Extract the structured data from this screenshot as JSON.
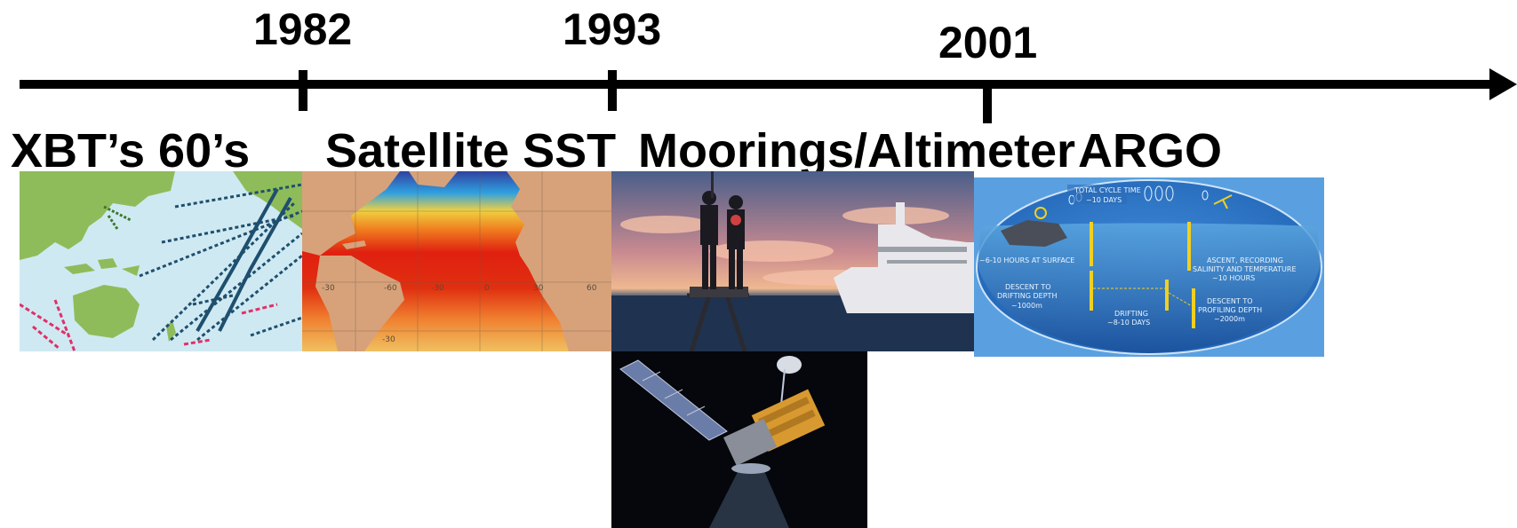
{
  "timeline": {
    "years": [
      "1982",
      "1993",
      "2001"
    ],
    "eras": [
      "XBT’s 60’s",
      "Satellite SST",
      "Moorings/Altimeter",
      "ARGO"
    ]
  },
  "argo_diagram": {
    "total_cycle": "TOTAL CYCLE TIME",
    "total_cycle_value": "~10 DAYS",
    "surface": "~6-10 HOURS AT SURFACE",
    "descent_drift_1": "DESCENT TO",
    "descent_drift_2": "DRIFTING DEPTH",
    "descent_drift_3": "~1000m",
    "drifting_1": "DRIFTING",
    "drifting_2": "~8-10 DAYS",
    "descent_profile_1": "DESCENT TO",
    "descent_profile_2": "PROFILING DEPTH",
    "descent_profile_3": "~2000m",
    "ascent_1": "ASCENT, RECORDING",
    "ascent_2": "SALINITY AND TEMPERATURE",
    "ascent_3": "~10 HOURS"
  },
  "sst_map": {
    "tick_labels": [
      "-30",
      "-60",
      "-30",
      "0",
      "30",
      "60",
      "-30"
    ]
  },
  "colors": {
    "axis": "#000000",
    "land": "#8fbc5a",
    "ocean_light": "#cfe9f2",
    "xbt_track": "#1e4f6e",
    "xbt_red": "#e0306a",
    "sst_land": "#d7a27a",
    "argo_blue": "#2e7fd0"
  }
}
